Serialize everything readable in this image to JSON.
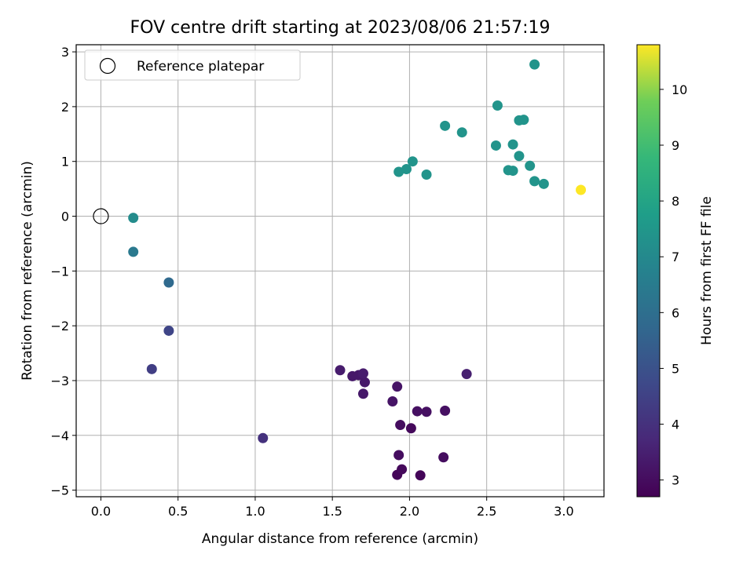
{
  "chart_data": {
    "type": "scatter",
    "title": "FOV centre drift starting at 2023/08/06 21:57:19",
    "xlabel": "Angular distance from reference (arcmin)",
    "ylabel": "Rotation from reference (arcmin)",
    "xlim": [
      -0.16,
      3.26
    ],
    "ylim": [
      -5.12,
      3.13
    ],
    "x_ticks": [
      0.0,
      0.5,
      1.0,
      1.5,
      2.0,
      2.5,
      3.0
    ],
    "x_tick_labels": [
      "0.0",
      "0.5",
      "1.0",
      "1.5",
      "2.0",
      "2.5",
      "3.0"
    ],
    "y_ticks": [
      -5,
      -4,
      -3,
      -2,
      -1,
      0,
      1,
      2,
      3
    ],
    "y_tick_labels": [
      "−5",
      "−4",
      "−3",
      "−2",
      "−1",
      "0",
      "1",
      "2",
      "3"
    ],
    "grid": true,
    "legend_position": "top-left",
    "legend": [
      {
        "label": "Reference platepar",
        "marker": "open-circle"
      }
    ],
    "reference_point": {
      "x": 0.0,
      "y": 0.0
    },
    "colorbar": {
      "label": "Hours from first FF file",
      "range": [
        2.7,
        10.8
      ],
      "ticks": [
        3,
        4,
        5,
        6,
        7,
        8,
        9,
        10
      ],
      "tick_labels": [
        "3",
        "4",
        "5",
        "6",
        "7",
        "8",
        "9",
        "10"
      ],
      "colormap": "viridis"
    },
    "points": [
      {
        "x": 1.92,
        "y": -4.72,
        "c": 2.8
      },
      {
        "x": 2.07,
        "y": -4.73,
        "c": 2.8
      },
      {
        "x": 1.95,
        "y": -4.62,
        "c": 2.9
      },
      {
        "x": 1.93,
        "y": -4.36,
        "c": 3.0
      },
      {
        "x": 2.22,
        "y": -4.4,
        "c": 3.0
      },
      {
        "x": 2.01,
        "y": -3.87,
        "c": 2.9
      },
      {
        "x": 1.94,
        "y": -3.81,
        "c": 3.0
      },
      {
        "x": 2.05,
        "y": -3.56,
        "c": 3.1
      },
      {
        "x": 2.11,
        "y": -3.57,
        "c": 3.1
      },
      {
        "x": 2.23,
        "y": -3.55,
        "c": 3.1
      },
      {
        "x": 1.89,
        "y": -3.38,
        "c": 3.2
      },
      {
        "x": 1.7,
        "y": -3.24,
        "c": 3.3
      },
      {
        "x": 1.92,
        "y": -3.11,
        "c": 3.2
      },
      {
        "x": 1.71,
        "y": -3.03,
        "c": 3.3
      },
      {
        "x": 1.63,
        "y": -2.92,
        "c": 3.3
      },
      {
        "x": 1.67,
        "y": -2.9,
        "c": 3.3
      },
      {
        "x": 1.7,
        "y": -2.87,
        "c": 3.4
      },
      {
        "x": 1.55,
        "y": -2.81,
        "c": 3.4
      },
      {
        "x": 2.37,
        "y": -2.88,
        "c": 3.5
      },
      {
        "x": 1.05,
        "y": -4.05,
        "c": 4.0
      },
      {
        "x": 0.33,
        "y": -2.79,
        "c": 4.4
      },
      {
        "x": 0.44,
        "y": -2.09,
        "c": 4.6
      },
      {
        "x": 0.44,
        "y": -1.21,
        "c": 5.8
      },
      {
        "x": 0.21,
        "y": -0.65,
        "c": 6.4
      },
      {
        "x": 0.21,
        "y": -0.03,
        "c": 7.1
      },
      {
        "x": 1.93,
        "y": 0.81,
        "c": 7.4
      },
      {
        "x": 1.98,
        "y": 0.86,
        "c": 7.4
      },
      {
        "x": 2.02,
        "y": 1.0,
        "c": 7.4
      },
      {
        "x": 2.11,
        "y": 0.76,
        "c": 7.4
      },
      {
        "x": 2.23,
        "y": 1.65,
        "c": 7.4
      },
      {
        "x": 2.34,
        "y": 1.53,
        "c": 7.4
      },
      {
        "x": 2.56,
        "y": 1.29,
        "c": 7.4
      },
      {
        "x": 2.57,
        "y": 2.02,
        "c": 7.4
      },
      {
        "x": 2.64,
        "y": 0.84,
        "c": 7.4
      },
      {
        "x": 2.67,
        "y": 0.83,
        "c": 7.4
      },
      {
        "x": 2.67,
        "y": 1.31,
        "c": 7.4
      },
      {
        "x": 2.71,
        "y": 1.75,
        "c": 7.4
      },
      {
        "x": 2.74,
        "y": 1.76,
        "c": 7.4
      },
      {
        "x": 2.71,
        "y": 1.1,
        "c": 7.4
      },
      {
        "x": 2.78,
        "y": 0.92,
        "c": 7.4
      },
      {
        "x": 2.81,
        "y": 0.64,
        "c": 7.4
      },
      {
        "x": 2.87,
        "y": 0.59,
        "c": 7.4
      },
      {
        "x": 2.81,
        "y": 2.77,
        "c": 7.4
      },
      {
        "x": 3.11,
        "y": 0.48,
        "c": 10.8
      }
    ]
  }
}
